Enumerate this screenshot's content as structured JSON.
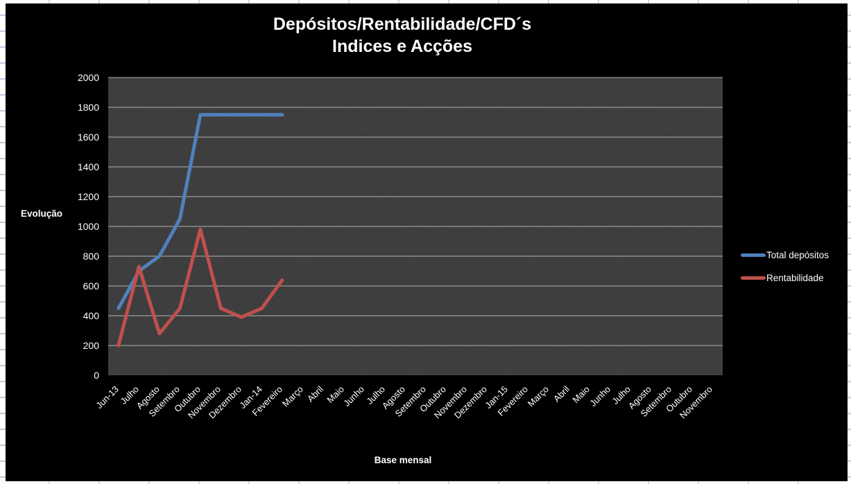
{
  "chart_data": {
    "type": "line",
    "title": "Depósitos/Rentabilidade/CFD´s",
    "subtitle": "Indices e Acções",
    "xlabel": "Base mensal",
    "ylabel": "Evolução",
    "ylim": [
      0,
      2000
    ],
    "yticks": [
      0,
      200,
      400,
      600,
      800,
      1000,
      1200,
      1400,
      1600,
      1800,
      2000
    ],
    "grid": true,
    "legend_position": "right",
    "categories": [
      "Jun-13",
      "Julho",
      "Agosto",
      "Setembro",
      "Outubro",
      "Novembro",
      "Dezembro",
      "Jan-14",
      "Fevereiro",
      "Março",
      "Abril",
      "Maio",
      "Junho",
      "Julho",
      "Agosto",
      "Setembro",
      "Outubro",
      "Novembro",
      "Dezembro",
      "Jan-15",
      "Fevereiro",
      "Março",
      "Abril",
      "Maio",
      "Junho",
      "Julho",
      "Agosto",
      "Setembro",
      "Outubro",
      "Novembro"
    ],
    "series": [
      {
        "name": "Total depósitos",
        "color": "#4F81BD",
        "values": [
          450,
          700,
          800,
          1050,
          1750,
          1750,
          1750,
          1750,
          1750
        ]
      },
      {
        "name": "Rentabilidade",
        "color": "#C0504D",
        "values": [
          200,
          730,
          280,
          450,
          980,
          450,
          390,
          450,
          640
        ]
      }
    ],
    "colors": {
      "canvas": "#000000",
      "plot_background": "#3c3c3c",
      "gridline": "#b3b3b3",
      "text": "#ffffff",
      "sheet_gridline": "#b9c9e0"
    }
  }
}
